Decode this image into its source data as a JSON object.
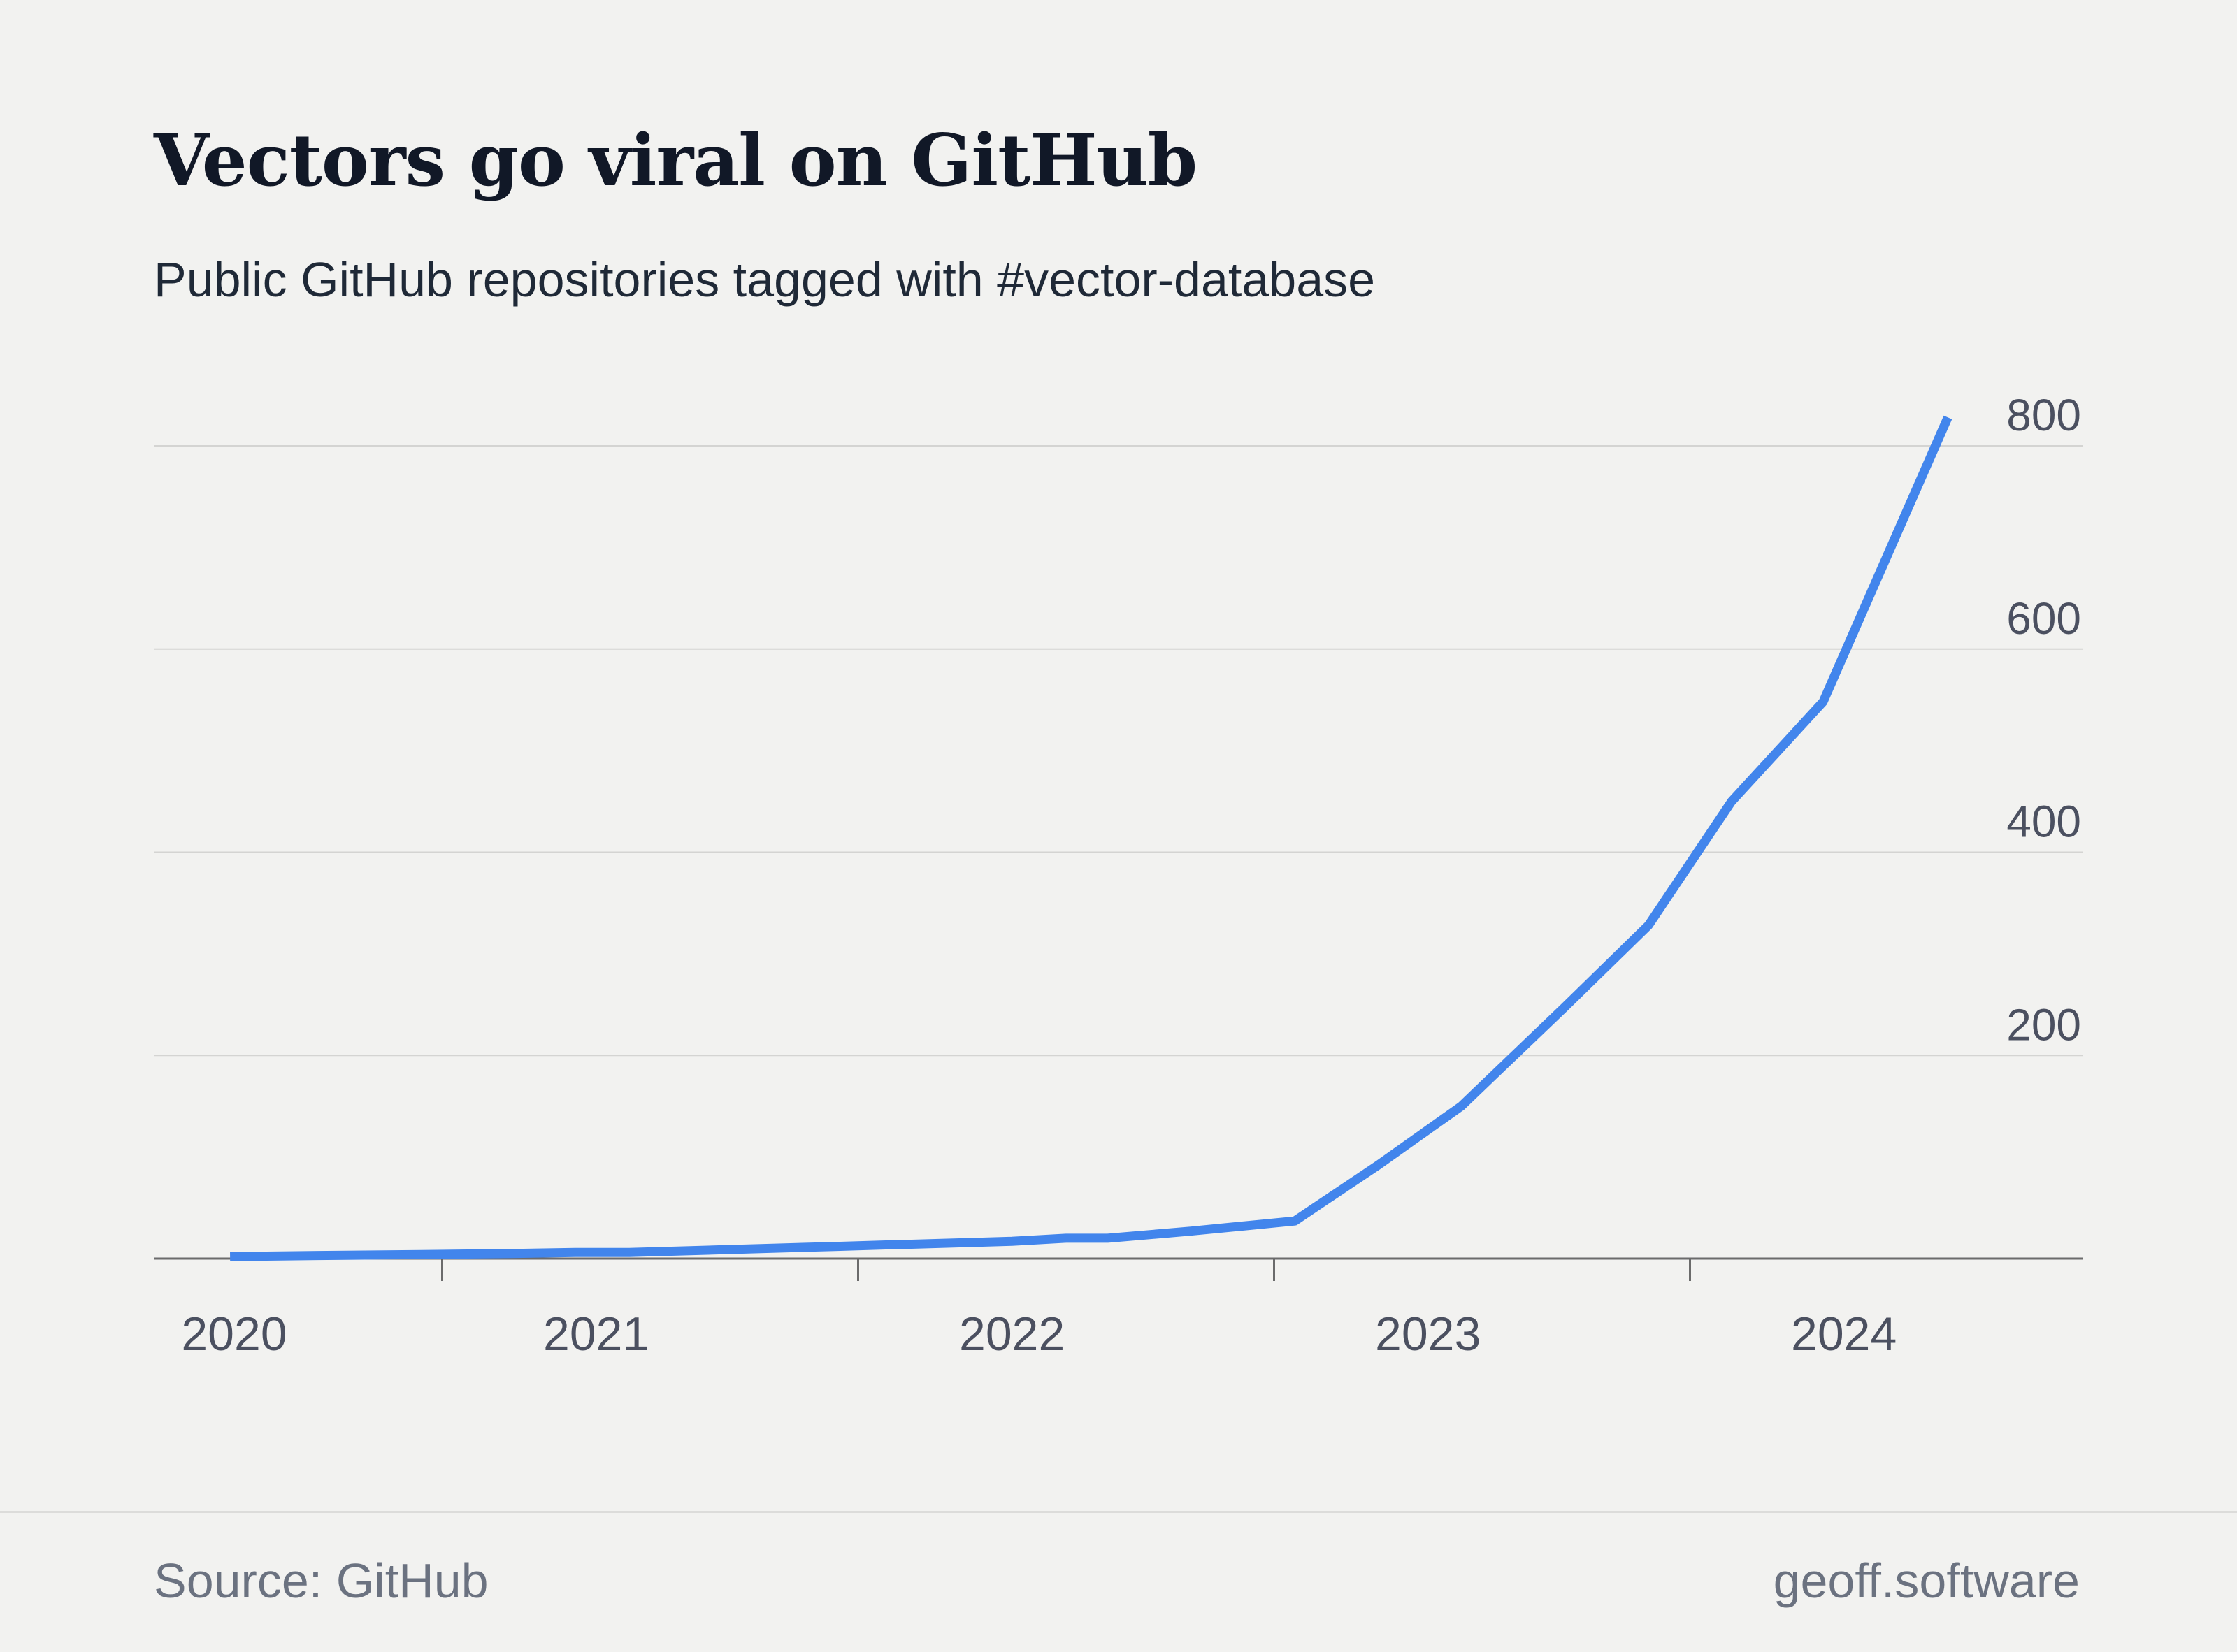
{
  "colors": {
    "background": "#f2f2f0",
    "line": "#4285ec",
    "gridline": "#d4d4d2",
    "axis": "#6b6b6b",
    "tick_label": "#4b5060",
    "title": "#111827",
    "footer_text": "#6b7280"
  },
  "chart_data": {
    "type": "line",
    "title": "Vectors go viral on GitHub",
    "subtitle": "Public GitHub repositories tagged with #vector-database",
    "xlabel": "",
    "ylabel": "",
    "xlim": [
      2019.8,
      2024.45
    ],
    "ylim": [
      0,
      800
    ],
    "grid": true,
    "y_axis_position": "right",
    "legend": "none",
    "x_tick_labels": [
      "2020",
      "2021",
      "2022",
      "2023",
      "2024"
    ],
    "x_tick_label_values": [
      2020.0,
      2020.87,
      2021.87,
      2022.87,
      2023.87
    ],
    "x_tick_marks": [
      2020.5,
      2021.5,
      2022.5,
      2023.5
    ],
    "y_ticks": [
      200,
      400,
      600,
      800
    ],
    "series": [
      {
        "x": [
          2019.99,
          2020.2,
          2020.45,
          2020.67,
          2020.82,
          2020.95,
          2021.2,
          2021.45,
          2021.7,
          2021.87,
          2022.0,
          2022.1,
          2022.3,
          2022.55,
          2022.75,
          2022.95,
          2023.2,
          2023.4,
          2023.6,
          2023.82,
          2024.12
        ],
        "y": [
          2,
          3,
          4,
          5,
          6,
          6,
          9,
          12,
          15,
          17,
          20,
          20,
          27,
          37,
          92,
          150,
          248,
          328,
          450,
          548,
          828
        ]
      }
    ]
  },
  "footer": {
    "source": "Source: GitHub",
    "credit": "geoff.software"
  }
}
